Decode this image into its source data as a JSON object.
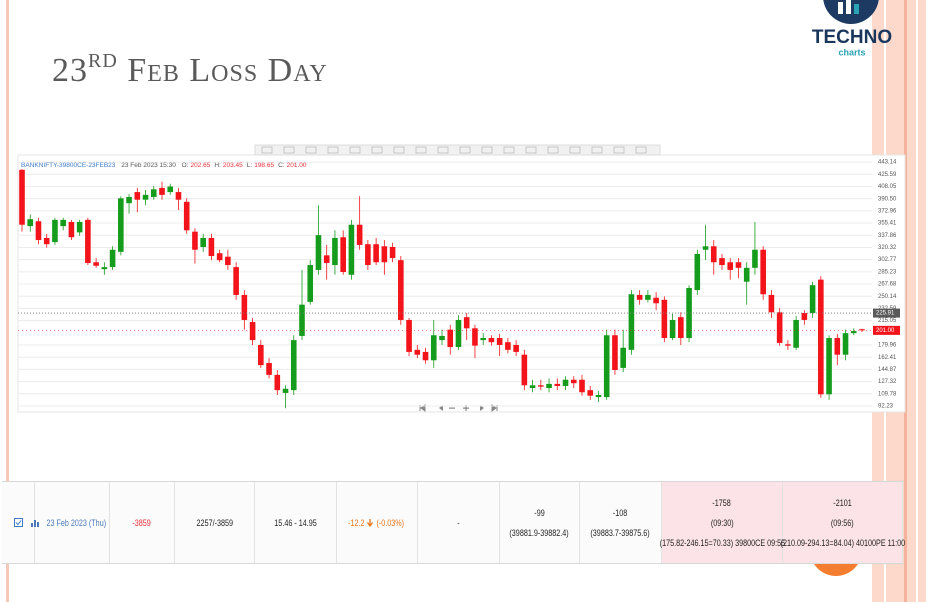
{
  "slide": {
    "title": {
      "number": "23",
      "suffix": "RD",
      "text": "Feb Loss Day"
    },
    "logo": {
      "name": "TECHNO",
      "tagline": "charts"
    }
  },
  "chart_data": {
    "type": "candlestick",
    "legend": {
      "symbol": "BANKNIFTY-39800CE-23FEB23",
      "datetime": "23 Feb 2023 15:30",
      "fields": [
        "O:",
        "H:",
        "L:",
        "C:"
      ],
      "values": [
        "202.65",
        "203.45",
        "198.65",
        "201.00"
      ]
    },
    "open": [
      432,
      351,
      358,
      334,
      328,
      351,
      357,
      342,
      360,
      299,
      289,
      292,
      314,
      384,
      400,
      389,
      393,
      406,
      400,
      400,
      386,
      343,
      321,
      334,
      312,
      307,
      292,
      252,
      213,
      180,
      154,
      137,
      111,
      115,
      193,
      242,
      288,
      309,
      295,
      335,
      281,
      353,
      325,
      325,
      322,
      321,
      302,
      216,
      173,
      170,
      158,
      187,
      202,
      177,
      220,
      204,
      187,
      190,
      190,
      184,
      180,
      166,
      118,
      122,
      118,
      124,
      121,
      130,
      130,
      115,
      105,
      105,
      194,
      147,
      173,
      252,
      245,
      248,
      245,
      190,
      220,
      190,
      259,
      317,
      322,
      305,
      299,
      299,
      271,
      291,
      317,
      252,
      227,
      181,
      176,
      226,
      226,
      274,
      109,
      190,
      166,
      197,
      202.65
    ],
    "high": [
      433,
      368,
      363,
      340,
      363,
      363,
      360,
      360,
      363,
      305,
      299,
      322,
      394,
      397,
      406,
      403,
      409,
      415,
      412,
      406,
      391,
      348,
      340,
      340,
      317,
      317,
      299,
      259,
      219,
      187,
      161,
      144,
      122,
      194,
      288,
      302,
      381,
      324,
      345,
      345,
      360,
      394,
      331,
      334,
      331,
      327,
      308,
      219,
      180,
      176,
      216,
      202,
      209,
      223,
      226,
      209,
      197,
      194,
      196,
      190,
      187,
      173,
      130,
      130,
      132,
      132,
      135,
      135,
      137,
      121,
      114,
      202,
      202,
      202,
      259,
      259,
      259,
      256,
      250,
      225,
      227,
      266,
      317,
      353,
      331,
      311,
      305,
      305,
      299,
      357,
      322,
      259,
      233,
      187,
      222,
      230,
      271,
      279,
      194,
      196,
      202,
      204,
      203.45
    ],
    "low": [
      343,
      343,
      325,
      320,
      324,
      345,
      331,
      337,
      295,
      291,
      281,
      288,
      309,
      369,
      371,
      381,
      389,
      389,
      396,
      374,
      340,
      297,
      314,
      302,
      299,
      288,
      245,
      202,
      180,
      147,
      132,
      108,
      89,
      108,
      187,
      238,
      281,
      274,
      281,
      281,
      274,
      317,
      288,
      295,
      281,
      299,
      209,
      164,
      161,
      153,
      147,
      180,
      166,
      173,
      187,
      161,
      180,
      179,
      164,
      168,
      164,
      115,
      112,
      115,
      112,
      115,
      115,
      118,
      107,
      101,
      98,
      101,
      137,
      141,
      166,
      238,
      241,
      230,
      184,
      187,
      180,
      184,
      252,
      302,
      281,
      288,
      274,
      276,
      238,
      281,
      245,
      219,
      179,
      173,
      173,
      209,
      219,
      104,
      101,
      151,
      158,
      194,
      198.65
    ],
    "close": [
      353,
      361,
      331,
      325,
      360,
      360,
      335,
      357,
      298,
      294,
      292,
      317,
      391,
      393,
      389,
      396,
      404,
      396,
      408,
      389,
      345,
      317,
      334,
      308,
      302,
      295,
      252,
      216,
      187,
      151,
      137,
      115,
      117,
      187,
      238,
      295,
      338,
      298,
      334,
      285,
      353,
      324,
      295,
      299,
      299,
      305,
      216,
      170,
      166,
      158,
      194,
      193,
      177,
      216,
      204,
      179,
      190,
      184,
      180,
      173,
      170,
      122,
      122,
      120,
      124,
      121,
      130,
      125,
      112,
      107,
      108,
      194,
      144,
      176,
      253,
      245,
      252,
      240,
      190,
      216,
      190,
      262,
      311,
      322,
      299,
      295,
      288,
      291,
      291,
      317,
      253,
      227,
      183,
      179,
      216,
      216,
      266,
      109,
      190,
      166,
      197,
      200,
      201.0
    ],
    "up_color": "#169c1c",
    "down_color": "#f2141a",
    "ylim": [
      85,
      451.9
    ],
    "yticks": [
      443.14,
      425.59,
      408.05,
      {
        "value": 390.5,
        "label": "390.50"
      },
      372.96,
      355.41,
      337.86,
      320.32,
      302.77,
      285.23,
      267.68,
      250.14,
      232.59,
      215.05,
      179.96,
      162.41,
      144.87,
      127.32,
      109.78,
      92.23
    ],
    "grid": true,
    "crosshair": {
      "value": 225.91,
      "label": "225.91"
    },
    "last_price": {
      "value": 201.0,
      "label": "201.00"
    }
  },
  "table": {
    "rows": [
      [
        "23 Feb 2023 (Thu)",
        "-3859",
        "2257/-3859",
        "15.46 - 14.95",
        [
          "-12.2",
          "(-0.03%)"
        ],
        "-",
        [
          "-99",
          "(39881.9-39882.4)"
        ],
        [
          "-108",
          "(39883.7-39875.6)"
        ],
        [
          "-1758",
          "(09:30)",
          "(175.82-246.15=70.33) 39800CE 09:55"
        ],
        [
          "-2101",
          "(09:56)",
          "(210.09-294.13=84.04) 40100PE 11:00"
        ]
      ]
    ]
  }
}
